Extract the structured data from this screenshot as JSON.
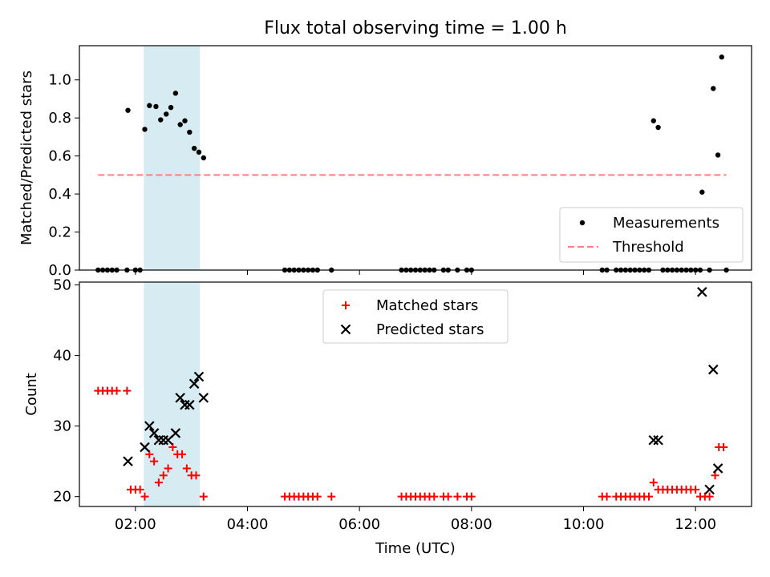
{
  "chart_data": [
    {
      "type": "scatter",
      "title": "Flux total observing time = 1.00 h",
      "xlabel": "",
      "ylabel": "Matched/Predicted stars",
      "x_unit": "hours UTC",
      "xlim": [
        "01:00",
        "13:00"
      ],
      "ylim": [
        0,
        1.18
      ],
      "yticks": [
        "0.0",
        "0.2",
        "0.4",
        "0.6",
        "0.8",
        "1.0"
      ],
      "legend_position": "lower right",
      "highlight_span": {
        "start": "02:09",
        "end": "03:09",
        "color": "#add8e6"
      },
      "series": [
        {
          "name": "Measurements",
          "marker": "dot",
          "color": "#000000",
          "points": [
            [
              "01:20",
              0
            ],
            [
              "01:25",
              0
            ],
            [
              "01:30",
              0
            ],
            [
              "01:35",
              0
            ],
            [
              "01:40",
              0
            ],
            [
              "01:51",
              0
            ],
            [
              "02:00",
              0
            ],
            [
              "02:05",
              0
            ],
            [
              "01:52",
              0.84
            ],
            [
              "02:10",
              0.74
            ],
            [
              "02:15",
              0.865
            ],
            [
              "02:22",
              0.86
            ],
            [
              "02:27",
              0.79
            ],
            [
              "02:33",
              0.82
            ],
            [
              "02:38",
              0.855
            ],
            [
              "02:43",
              0.93
            ],
            [
              "02:48",
              0.765
            ],
            [
              "02:53",
              0.785
            ],
            [
              "02:58",
              0.725
            ],
            [
              "03:03",
              0.64
            ],
            [
              "03:08",
              0.62
            ],
            [
              "03:13",
              0.59
            ],
            [
              "04:40",
              0
            ],
            [
              "04:45",
              0
            ],
            [
              "04:50",
              0
            ],
            [
              "04:55",
              0
            ],
            [
              "05:00",
              0
            ],
            [
              "05:05",
              0
            ],
            [
              "05:10",
              0
            ],
            [
              "05:15",
              0
            ],
            [
              "05:30",
              0
            ],
            [
              "06:45",
              0
            ],
            [
              "06:50",
              0
            ],
            [
              "06:55",
              0
            ],
            [
              "07:00",
              0
            ],
            [
              "07:05",
              0
            ],
            [
              "07:10",
              0
            ],
            [
              "07:15",
              0
            ],
            [
              "07:20",
              0
            ],
            [
              "07:30",
              0
            ],
            [
              "07:35",
              0
            ],
            [
              "07:45",
              0
            ],
            [
              "07:55",
              0
            ],
            [
              "08:00",
              0
            ],
            [
              "10:20",
              0
            ],
            [
              "10:25",
              0
            ],
            [
              "10:35",
              0
            ],
            [
              "10:40",
              0
            ],
            [
              "10:45",
              0
            ],
            [
              "10:50",
              0
            ],
            [
              "10:55",
              0
            ],
            [
              "11:00",
              0
            ],
            [
              "11:05",
              0
            ],
            [
              "11:10",
              0
            ],
            [
              "11:15",
              0.785
            ],
            [
              "11:20",
              0.75
            ],
            [
              "11:25",
              0
            ],
            [
              "11:30",
              0
            ],
            [
              "11:35",
              0
            ],
            [
              "11:40",
              0
            ],
            [
              "11:45",
              0
            ],
            [
              "11:50",
              0
            ],
            [
              "11:55",
              0
            ],
            [
              "12:00",
              0
            ],
            [
              "12:05",
              0
            ],
            [
              "12:07",
              0.41
            ],
            [
              "12:15",
              0
            ],
            [
              "12:19",
              0.955
            ],
            [
              "12:24",
              0.605
            ],
            [
              "12:28",
              1.12
            ],
            [
              "12:33",
              0
            ]
          ]
        },
        {
          "name": "Threshold",
          "line": "dashed",
          "color": "#ff7f7f",
          "from": "01:20",
          "to": "12:33",
          "value": 0.5
        }
      ]
    },
    {
      "type": "scatter",
      "title": "",
      "xlabel": "Time (UTC)",
      "ylabel": "Count",
      "x_unit": "hours UTC",
      "xlim": [
        "01:00",
        "13:00"
      ],
      "xticks": [
        "02:00",
        "04:00",
        "06:00",
        "08:00",
        "10:00",
        "12:00"
      ],
      "ylim": [
        18.6,
        50.4
      ],
      "yticks": [
        "20",
        "30",
        "40",
        "50"
      ],
      "legend_position": "upper center",
      "highlight_span": {
        "start": "02:09",
        "end": "03:09",
        "color": "#add8e6"
      },
      "series": [
        {
          "name": "Matched stars",
          "marker": "plus",
          "color": "#ff0000",
          "points": [
            [
              "01:20",
              35
            ],
            [
              "01:25",
              35
            ],
            [
              "01:30",
              35
            ],
            [
              "01:35",
              35
            ],
            [
              "01:40",
              35
            ],
            [
              "01:51",
              35
            ],
            [
              "01:55",
              21
            ],
            [
              "02:00",
              21
            ],
            [
              "02:05",
              21
            ],
            [
              "02:10",
              20
            ],
            [
              "02:15",
              26
            ],
            [
              "02:20",
              25
            ],
            [
              "02:25",
              22
            ],
            [
              "02:30",
              23
            ],
            [
              "02:35",
              24
            ],
            [
              "02:40",
              27
            ],
            [
              "02:45",
              26
            ],
            [
              "02:50",
              26
            ],
            [
              "02:55",
              24
            ],
            [
              "03:00",
              23
            ],
            [
              "03:05",
              23
            ],
            [
              "03:13",
              20
            ],
            [
              "04:40",
              20
            ],
            [
              "04:45",
              20
            ],
            [
              "04:50",
              20
            ],
            [
              "04:55",
              20
            ],
            [
              "05:00",
              20
            ],
            [
              "05:05",
              20
            ],
            [
              "05:10",
              20
            ],
            [
              "05:15",
              20
            ],
            [
              "05:30",
              20
            ],
            [
              "06:45",
              20
            ],
            [
              "06:50",
              20
            ],
            [
              "06:55",
              20
            ],
            [
              "07:00",
              20
            ],
            [
              "07:05",
              20
            ],
            [
              "07:10",
              20
            ],
            [
              "07:15",
              20
            ],
            [
              "07:20",
              20
            ],
            [
              "07:30",
              20
            ],
            [
              "07:35",
              20
            ],
            [
              "07:45",
              20
            ],
            [
              "07:55",
              20
            ],
            [
              "08:00",
              20
            ],
            [
              "10:20",
              20
            ],
            [
              "10:25",
              20
            ],
            [
              "10:35",
              20
            ],
            [
              "10:40",
              20
            ],
            [
              "10:45",
              20
            ],
            [
              "10:50",
              20
            ],
            [
              "10:55",
              20
            ],
            [
              "11:00",
              20
            ],
            [
              "11:05",
              20
            ],
            [
              "11:10",
              20
            ],
            [
              "11:15",
              22
            ],
            [
              "11:20",
              21
            ],
            [
              "11:25",
              21
            ],
            [
              "11:30",
              21
            ],
            [
              "11:35",
              21
            ],
            [
              "11:40",
              21
            ],
            [
              "11:45",
              21
            ],
            [
              "11:50",
              21
            ],
            [
              "11:55",
              21
            ],
            [
              "12:00",
              21
            ],
            [
              "12:05",
              20
            ],
            [
              "12:10",
              20
            ],
            [
              "12:15",
              20
            ],
            [
              "12:21",
              23
            ],
            [
              "12:25",
              27
            ],
            [
              "12:30",
              27
            ]
          ]
        },
        {
          "name": "Predicted stars",
          "marker": "x",
          "color": "#000000",
          "points": [
            [
              "01:52",
              25
            ],
            [
              "02:10",
              27
            ],
            [
              "02:15",
              30
            ],
            [
              "02:20",
              29
            ],
            [
              "02:25",
              28
            ],
            [
              "02:30",
              28
            ],
            [
              "02:35",
              28
            ],
            [
              "02:43",
              29
            ],
            [
              "02:48",
              34
            ],
            [
              "02:53",
              33
            ],
            [
              "02:58",
              33
            ],
            [
              "03:03",
              36
            ],
            [
              "03:08",
              37
            ],
            [
              "03:13",
              34
            ],
            [
              "11:15",
              28
            ],
            [
              "11:20",
              28
            ],
            [
              "12:07",
              49
            ],
            [
              "12:15",
              21
            ],
            [
              "12:19",
              38
            ],
            [
              "12:24",
              24
            ]
          ]
        }
      ]
    }
  ]
}
